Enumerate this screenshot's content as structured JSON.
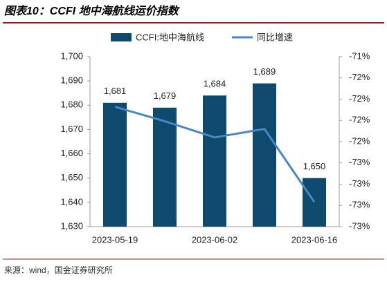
{
  "header": {
    "title": "图表10：CCFI 地中海航线运价指数"
  },
  "chart_data": {
    "type": "bar",
    "categories": [
      "2023-05-19",
      null,
      "2023-06-02",
      null,
      "2023-06-16"
    ],
    "series": [
      {
        "name": "CCFI:地中海航线",
        "type": "bar",
        "color": "#0e4a6c",
        "values": [
          1681,
          1679,
          1684,
          1689,
          1650
        ],
        "value_labels": [
          "1,681",
          "1,679",
          "1,684",
          "1,689",
          "1,650"
        ]
      },
      {
        "name": "同比增速",
        "type": "line",
        "axis": "y2",
        "color": "#4a86c5",
        "values": [
          -71.99,
          -72.16,
          -72.35,
          -72.25,
          -73.11
        ]
      }
    ],
    "ylim": [
      1630,
      1700
    ],
    "yticks": [
      {
        "value": 1630,
        "label": "1,630"
      },
      {
        "value": 1640,
        "label": "1,640"
      },
      {
        "value": 1650,
        "label": "1,650"
      },
      {
        "value": 1660,
        "label": "1,660"
      },
      {
        "value": 1670,
        "label": "1,670"
      },
      {
        "value": 1680,
        "label": "1,680"
      },
      {
        "value": 1690,
        "label": "1,690"
      },
      {
        "value": 1700,
        "label": "1,700"
      }
    ],
    "y2lim": [
      -73.4,
      -71.4
    ],
    "y2ticks": [
      {
        "value": -73.4,
        "label": "-73%"
      },
      {
        "value": -73.15,
        "label": "-73%"
      },
      {
        "value": -72.9,
        "label": "-73%"
      },
      {
        "value": -72.65,
        "label": "-73%"
      },
      {
        "value": -72.4,
        "label": "-72%"
      },
      {
        "value": -72.15,
        "label": "-72%"
      },
      {
        "value": -71.9,
        "label": "-72%"
      },
      {
        "value": -71.65,
        "label": "-72%"
      },
      {
        "value": -71.4,
        "label": "-71%"
      }
    ],
    "legend": "top"
  },
  "footer": {
    "source": "来源：wind，国金证券研究所"
  }
}
